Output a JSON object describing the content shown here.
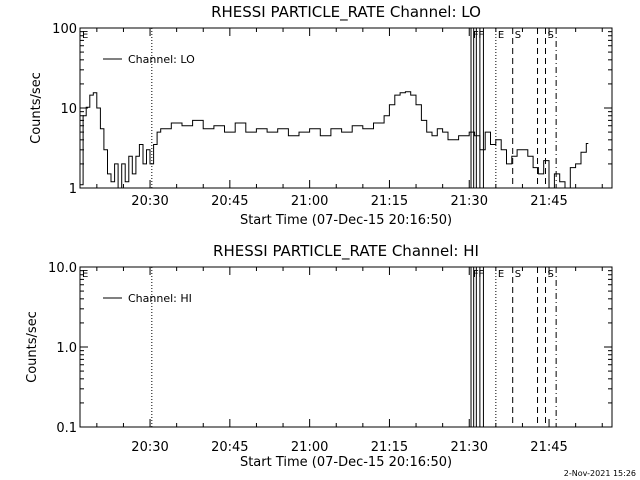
{
  "chart_data": [
    {
      "type": "line",
      "title": "RHESSI PARTICLE_RATE Channel: LO",
      "xlabel": "Start Time (07-Dec-15 20:16:50)",
      "ylabel": "Counts/sec",
      "y_scale": "log",
      "ylim": [
        1,
        100
      ],
      "y_ticks": [
        "1",
        "10",
        "100"
      ],
      "xlim": [
        "20:16:50",
        "21:56:50"
      ],
      "x_ticks": [
        "20:30",
        "20:45",
        "21:00",
        "21:15",
        "21:30",
        "21:45"
      ],
      "legend": "Channel: LO",
      "legend_position": "top-left",
      "grid": false,
      "series": [
        {
          "name": "Channel: LO",
          "color": "#000000",
          "x": [
            "20:16:50",
            "20:17:25",
            "20:18:00",
            "20:18:40",
            "20:19:20",
            "20:20:00",
            "20:20:40",
            "20:21:20",
            "20:22:00",
            "20:22:40",
            "20:23:20",
            "20:24:00",
            "20:24:40",
            "20:25:20",
            "20:26:00",
            "20:26:40",
            "20:27:20",
            "20:28:00",
            "20:28:40",
            "20:29:20",
            "20:30:00",
            "20:30:40",
            "20:31:20",
            "20:32:00",
            "20:34:00",
            "20:36:00",
            "20:38:00",
            "20:40:00",
            "20:42:00",
            "20:44:00",
            "20:46:00",
            "20:48:00",
            "20:50:00",
            "20:52:00",
            "20:54:00",
            "20:56:00",
            "20:58:00",
            "21:00:00",
            "21:02:00",
            "21:04:00",
            "21:06:00",
            "21:08:00",
            "21:10:00",
            "21:12:00",
            "21:14:00",
            "21:15:00",
            "21:16:00",
            "21:17:00",
            "21:18:00",
            "21:19:00",
            "21:20:00",
            "21:21:00",
            "21:22:00",
            "21:23:00",
            "21:24:00",
            "21:25:00",
            "21:26:00",
            "21:28:00",
            "21:30:00",
            "21:31:00",
            "21:32:00",
            "21:33:00",
            "21:34:00",
            "21:35:00",
            "21:36:00",
            "21:37:00",
            "21:38:00",
            "21:39:00",
            "21:40:00",
            "21:41:00",
            "21:42:00",
            "21:43:00",
            "21:44:00",
            "21:45:00",
            "21:46:00",
            "21:47:00",
            "21:48:00",
            "21:49:00",
            "21:50:00",
            "21:51:00",
            "21:52:00"
          ],
          "values": [
            1.1,
            8.0,
            10.2,
            14.5,
            15.5,
            10.0,
            5.5,
            3.0,
            1.5,
            1.2,
            2.0,
            1.0,
            2.0,
            1.2,
            2.5,
            1.5,
            2.5,
            3.5,
            2.0,
            3.0,
            2.0,
            3.5,
            5.0,
            5.5,
            6.5,
            6.0,
            7.0,
            5.5,
            6.0,
            5.0,
            6.5,
            5.0,
            5.5,
            5.0,
            5.5,
            4.5,
            5.0,
            5.5,
            4.5,
            5.5,
            5.0,
            6.0,
            5.5,
            6.5,
            8.0,
            11.0,
            14.5,
            15.5,
            16.0,
            14.5,
            11.0,
            7.0,
            5.0,
            4.5,
            5.5,
            5.0,
            4.0,
            4.5,
            5.0,
            4.5,
            3.0,
            5.0,
            3.5,
            4.0,
            3.0,
            2.0,
            2.5,
            3.0,
            3.0,
            2.5,
            1.8,
            1.5,
            2.2,
            1.0,
            1.5,
            1.2,
            1.0,
            1.8,
            2.0,
            2.8,
            3.6
          ]
        }
      ],
      "markers": [
        {
          "time": "20:30:20",
          "label": "",
          "style": "dotted"
        },
        {
          "time": "21:30:20",
          "label": "F",
          "style": "solid"
        },
        {
          "time": "21:30:50",
          "label": "",
          "style": "solid"
        },
        {
          "time": "21:31:20",
          "label": "F",
          "style": "solid"
        },
        {
          "time": "21:32:00",
          "label": "",
          "style": "solid"
        },
        {
          "time": "21:32:40",
          "label": "",
          "style": "solid"
        },
        {
          "time": "21:35:00",
          "label": "E",
          "style": "dotted"
        },
        {
          "time": "21:38:10",
          "label": "S",
          "style": "dashed"
        },
        {
          "time": "21:42:50",
          "label": "",
          "style": "dashed"
        },
        {
          "time": "21:44:20",
          "label": "S",
          "style": "dashed"
        },
        {
          "time": "21:46:20",
          "label": "",
          "style": "dashdot"
        }
      ],
      "start_label": "E"
    },
    {
      "type": "line",
      "title": "RHESSI PARTICLE_RATE Channel: HI",
      "xlabel": "Start Time (07-Dec-15 20:16:50)",
      "ylabel": "Counts/sec",
      "y_scale": "log",
      "ylim": [
        0.1,
        10.0
      ],
      "y_ticks": [
        "0.1",
        "1.0",
        "10.0"
      ],
      "xlim": [
        "20:16:50",
        "21:56:50"
      ],
      "x_ticks": [
        "20:30",
        "20:45",
        "21:00",
        "21:15",
        "21:30",
        "21:45"
      ],
      "legend": "Channel: HI",
      "legend_position": "top-left",
      "grid": false,
      "series": [
        {
          "name": "Channel: HI",
          "color": "#000000",
          "x": [],
          "values": []
        }
      ],
      "markers": [
        {
          "time": "20:30:20",
          "label": "",
          "style": "dotted"
        },
        {
          "time": "21:30:20",
          "label": "F",
          "style": "solid"
        },
        {
          "time": "21:30:50",
          "label": "",
          "style": "solid"
        },
        {
          "time": "21:31:20",
          "label": "F",
          "style": "solid"
        },
        {
          "time": "21:32:00",
          "label": "",
          "style": "solid"
        },
        {
          "time": "21:32:40",
          "label": "",
          "style": "solid"
        },
        {
          "time": "21:35:00",
          "label": "E",
          "style": "dotted"
        },
        {
          "time": "21:38:10",
          "label": "S",
          "style": "dashed"
        },
        {
          "time": "21:42:50",
          "label": "",
          "style": "dashed"
        },
        {
          "time": "21:44:20",
          "label": "S",
          "style": "dashed"
        },
        {
          "time": "21:46:20",
          "label": "",
          "style": "dashdot"
        }
      ],
      "start_label": "E"
    }
  ],
  "footer": {
    "timestamp": "2-Nov-2021 15:26"
  }
}
